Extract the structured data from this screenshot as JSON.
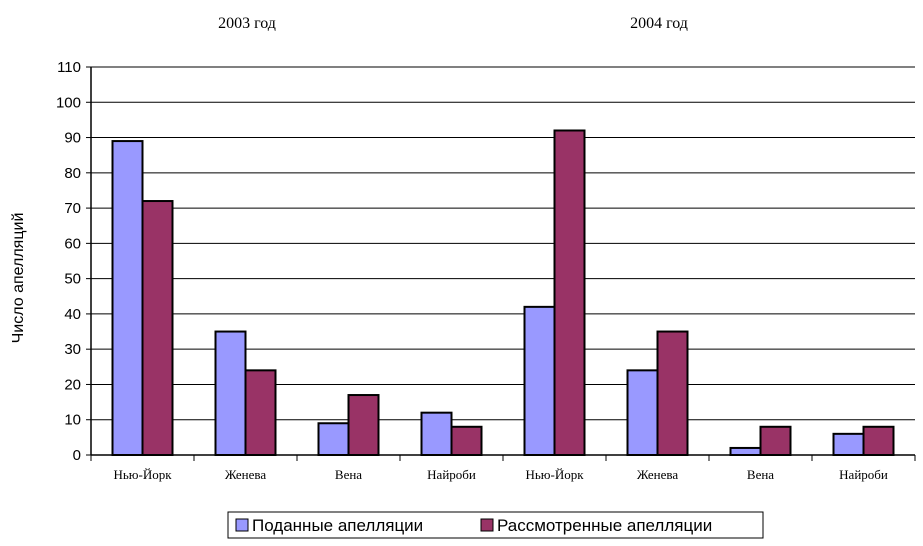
{
  "chart_data": {
    "type": "bar",
    "ylabel": "Число апелляций",
    "ylim": [
      0,
      110
    ],
    "yticks": [
      0,
      10,
      20,
      30,
      40,
      50,
      60,
      70,
      80,
      90,
      100,
      110
    ],
    "grid": true,
    "legend_position": "bottom",
    "groups": [
      "2003 год",
      "2004 год"
    ],
    "categories": [
      "Нью-Йорк",
      "Женева",
      "Вена",
      "Найроби",
      "Нью-Йорк",
      "Женева",
      "Вена",
      "Найроби"
    ],
    "series": [
      {
        "name": "Поданные апелляции",
        "color": "#9999ff",
        "values": [
          89,
          35,
          9,
          12,
          42,
          24,
          2,
          6
        ]
      },
      {
        "name": "Рассмотренные апелляции",
        "color": "#993366",
        "values": [
          72,
          24,
          17,
          8,
          92,
          35,
          8,
          8
        ]
      }
    ]
  }
}
